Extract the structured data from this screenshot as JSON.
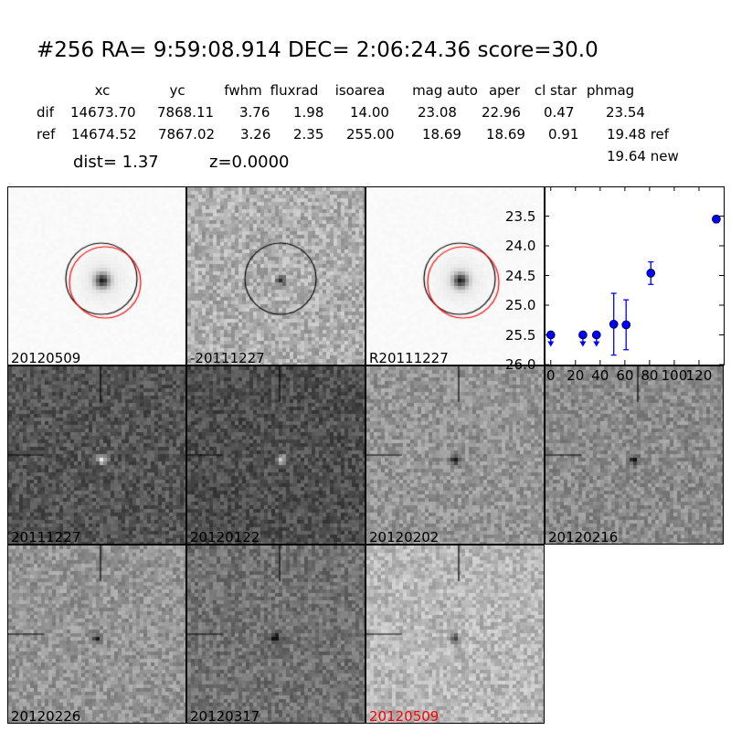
{
  "header": {
    "title": "#256   RA= 9:59:08.914 DEC= 2:06:24.36      score=30.0",
    "columns": [
      "xc",
      "yc",
      "fwhm",
      "fluxrad",
      "isoarea",
      "mag auto",
      "aper",
      "cl star",
      "phmag"
    ],
    "rows": [
      {
        "label": "dif",
        "values": [
          "14673.70",
          "7868.11",
          "3.76",
          "1.98",
          "14.00",
          "23.08",
          "22.96",
          "0.47",
          "23.54"
        ]
      },
      {
        "label": "ref",
        "values": [
          "14674.52",
          "7867.02",
          "3.26",
          "2.35",
          "255.00",
          "18.69",
          "18.69",
          "0.91",
          "19.48 ref"
        ]
      }
    ],
    "new_phmag": "19.64 new",
    "dist": "dist=  1.37",
    "z": "z=0.0000"
  },
  "panels": [
    {
      "label": "20120509",
      "kind": "star",
      "bg": 250,
      "circles": true
    },
    {
      "label": "-20111227",
      "kind": "diff",
      "bg": 175,
      "circles": "black"
    },
    {
      "label": "R20111227",
      "kind": "star",
      "bg": 250,
      "circles": true
    },
    {
      "label": "20111227",
      "kind": "noise",
      "bg": 85,
      "blob": "white"
    },
    {
      "label": "20120122",
      "kind": "noise",
      "bg": 80,
      "blob": "white"
    },
    {
      "label": "20120202",
      "kind": "noise",
      "bg": 150,
      "blob": "dark"
    },
    {
      "label": "20120216",
      "kind": "noise",
      "bg": 140,
      "blob": "dark"
    },
    {
      "label": "20120226",
      "kind": "noise",
      "bg": 150,
      "blob": "dark"
    },
    {
      "label": "20120317",
      "kind": "noise",
      "bg": 115,
      "blob": "dark"
    },
    {
      "label": "20120509",
      "kind": "noise",
      "bg": 185,
      "blob": "dark",
      "label_color": "#ff0000"
    }
  ],
  "chart_data": {
    "type": "scatter",
    "xlim": [
      -5,
      140
    ],
    "ylim": [
      26.0,
      23.0
    ],
    "y_inverted": true,
    "xticks": [
      0,
      20,
      40,
      60,
      80,
      100,
      120
    ],
    "yticks": [
      "23.5",
      "24.0",
      "24.5",
      "25.0",
      "25.5",
      "26.0"
    ],
    "color": "#0000ff",
    "points": [
      {
        "x": 0,
        "y": 25.5,
        "upper_limit": true
      },
      {
        "x": 26,
        "y": 25.5,
        "upper_limit": true
      },
      {
        "x": 37,
        "y": 25.5,
        "upper_limit": true
      },
      {
        "x": 51,
        "y": 25.32,
        "err": [
          24.8,
          25.84
        ]
      },
      {
        "x": 61,
        "y": 25.33,
        "err": [
          24.91,
          25.75
        ]
      },
      {
        "x": 81,
        "y": 24.46,
        "err": [
          24.27,
          24.65
        ]
      },
      {
        "x": 134,
        "y": 23.55,
        "err": [
          23.5,
          23.61
        ]
      }
    ]
  }
}
